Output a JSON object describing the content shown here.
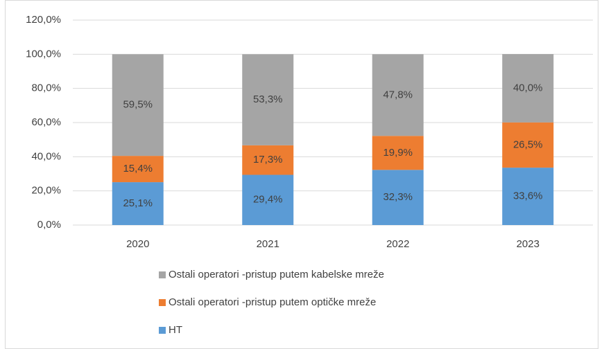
{
  "chart_data": {
    "type": "stacked_bar",
    "categories": [
      "2020",
      "2021",
      "2022",
      "2023"
    ],
    "series": [
      {
        "name": "HT",
        "color": "#5b9bd5",
        "values": [
          25.1,
          29.4,
          32.3,
          33.6
        ],
        "value_labels": [
          "25,1%",
          "29,4%",
          "32,3%",
          "33,6%"
        ]
      },
      {
        "name": "Ostali operatori -pristup putem optičke mreže",
        "color": "#ed7d31",
        "values": [
          15.4,
          17.3,
          19.9,
          26.5
        ],
        "value_labels": [
          "15,4%",
          "17,3%",
          "19,9%",
          "26,5%"
        ]
      },
      {
        "name": "Ostali operatori -pristup putem kabelske mreže",
        "color": "#a5a5a5",
        "values": [
          59.5,
          53.3,
          47.8,
          40.0
        ],
        "value_labels": [
          "59,5%",
          "53,3%",
          "47,8%",
          "40,0%"
        ]
      }
    ],
    "ylim": [
      0,
      120
    ],
    "yticks": [
      {
        "value": 0,
        "label": "0,0%"
      },
      {
        "value": 20,
        "label": "20,0%"
      },
      {
        "value": 40,
        "label": "40,0%"
      },
      {
        "value": 60,
        "label": "60,0%"
      },
      {
        "value": 80,
        "label": "80,0%"
      },
      {
        "value": 100,
        "label": "100,0%"
      },
      {
        "value": 120,
        "label": "120,0%"
      }
    ],
    "grid": true,
    "legend": "bottom"
  }
}
